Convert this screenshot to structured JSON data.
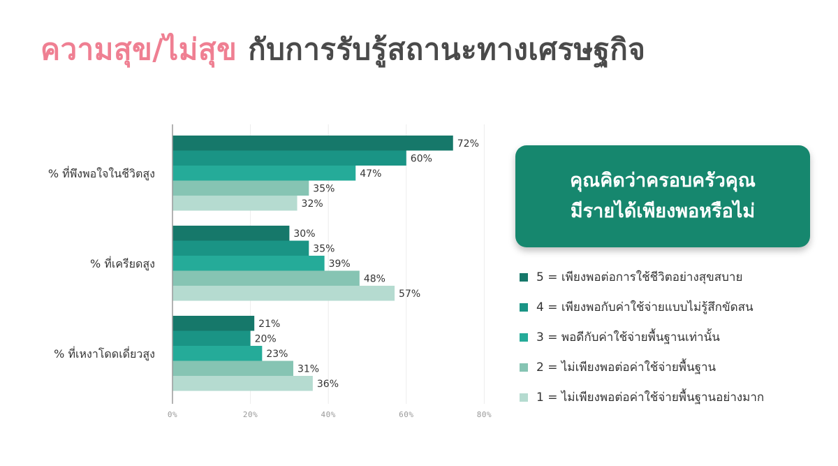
{
  "title": {
    "highlight": "ความสุข/ไม่สุข",
    "rest": "กับการรับรู้สถานะทางเศรษฐกิจ"
  },
  "callout": {
    "line1": "คุณคิดว่าครอบครัวคุณ",
    "line2": "มีรายได้เพียงพอหรือไม่"
  },
  "colors": {
    "title_accent": "#ef7f92",
    "callout_bg": "#16876e",
    "series": [
      "#16786a",
      "#1a9485",
      "#25ab99",
      "#86c4b3",
      "#b5dbd0"
    ]
  },
  "chart_data": {
    "type": "bar",
    "orientation": "horizontal",
    "categories": [
      "% ที่พึงพอใจในชีวิตสูง",
      "% ที่เครียดสูง",
      "% ที่เหงาโดดเดี่ยวสูง"
    ],
    "series": [
      {
        "name": "5 = เพียงพอต่อการใช้ชีวิตอย่างสุขสบาย",
        "values": [
          72,
          30,
          21
        ]
      },
      {
        "name": "4 = เพียงพอกับค่าใช้จ่ายแบบไม่รู้สึกขัดสน",
        "values": [
          60,
          35,
          20
        ]
      },
      {
        "name": "3 = พอดีกับค่าใช้จ่ายพื้นฐานเท่านั้น",
        "values": [
          47,
          39,
          23
        ]
      },
      {
        "name": "2 = ไม่เพียงพอต่อค่าใช้จ่ายพื้นฐาน",
        "values": [
          35,
          48,
          31
        ]
      },
      {
        "name": "1 = ไม่เพียงพอต่อค่าใช้จ่ายพื้นฐานอย่างมาก",
        "values": [
          32,
          57,
          36
        ]
      }
    ],
    "value_labels": [
      [
        "72%",
        "30%",
        "21%"
      ],
      [
        "60%",
        "35%",
        "20%"
      ],
      [
        "47%",
        "39%",
        "23%"
      ],
      [
        "35%",
        "48%",
        "31%"
      ],
      [
        "32%",
        "57%",
        "36%"
      ]
    ],
    "xlim": [
      0,
      80
    ],
    "xticks": [
      0,
      20,
      40,
      60,
      80
    ],
    "xtick_labels": [
      "0%",
      "20%",
      "40%",
      "60%",
      "80%"
    ],
    "grid": true,
    "legend_position": "right"
  }
}
